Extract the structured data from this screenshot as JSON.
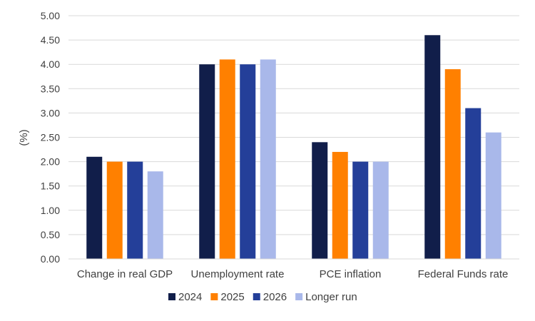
{
  "chart_data": {
    "type": "bar",
    "title": "",
    "xlabel": "",
    "ylabel": "(%)",
    "ylim": [
      0,
      5
    ],
    "ytick_step": 0.5,
    "yticks": [
      "0.00",
      "0.50",
      "1.00",
      "1.50",
      "2.00",
      "2.50",
      "3.00",
      "3.50",
      "4.00",
      "4.50",
      "5.00"
    ],
    "grid": true,
    "legend_position": "bottom",
    "categories": [
      "Change in real GDP",
      "Unemployment rate",
      "PCE inflation",
      "Federal Funds rate"
    ],
    "series": [
      {
        "name": "2024",
        "color": "#111e4a",
        "values": [
          2.1,
          4.0,
          2.4,
          4.6
        ]
      },
      {
        "name": "2025",
        "color": "#ff8000",
        "values": [
          2.0,
          4.1,
          2.2,
          3.9
        ]
      },
      {
        "name": "2026",
        "color": "#243f99",
        "values": [
          2.0,
          4.0,
          2.0,
          3.1
        ]
      },
      {
        "name": "Longer run",
        "color": "#a9b8ea",
        "values": [
          1.8,
          4.1,
          2.0,
          2.6
        ]
      }
    ]
  }
}
